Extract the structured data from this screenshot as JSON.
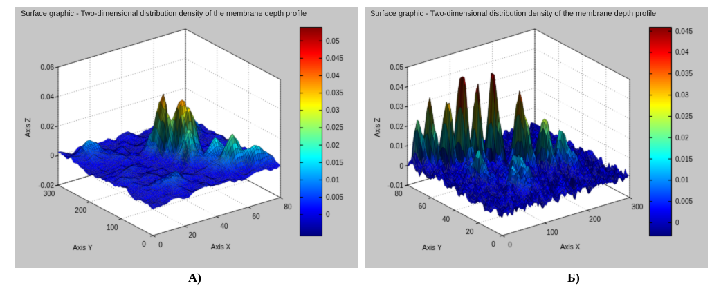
{
  "figure": {
    "panel_bg": "#c6c6c6",
    "plot_bg": "#ffffff",
    "text_color": "#000000",
    "grid_color": "rgba(0,0,0,0.55)",
    "jet_colormap": [
      "#00008f",
      "#0000ff",
      "#00ffff",
      "#ffff00",
      "#ff0000",
      "#800000"
    ]
  },
  "chart_data": [
    {
      "type": "3d-surface",
      "panel_label": "А)",
      "title": "Surface graphic - Two-dimensional distribution density of the membrane depth profile",
      "xlabel": "Axis X",
      "ylabel": "Axis Y",
      "zlabel": "Axis Z",
      "xlim": [
        0,
        80
      ],
      "ylim": [
        0,
        300
      ],
      "zlim": [
        -0.02,
        0.06
      ],
      "x_ticks": {
        "values": [
          0,
          20,
          40,
          60,
          80
        ],
        "labels": [
          "0",
          "20",
          "40",
          "60",
          "80"
        ]
      },
      "y_ticks": {
        "values": [
          0,
          100,
          200,
          300
        ],
        "labels": [
          "0",
          "100",
          "200",
          "300"
        ]
      },
      "z_ticks": {
        "values": [
          -0.02,
          0,
          0.02,
          0.04,
          0.06
        ],
        "labels": [
          "-0.02",
          "0",
          "0.02",
          "0.04",
          "0.06"
        ]
      },
      "colorbar": {
        "tick_values": [
          0,
          0.005,
          0.01,
          0.015,
          0.02,
          0.025,
          0.03,
          0.035,
          0.04,
          0.045,
          0.05
        ],
        "tick_labels": [
          "0",
          "0.005",
          "0.01",
          "0.015",
          "0.02",
          "0.025",
          "0.03",
          "0.035",
          "0.04",
          "0.045",
          "0.05"
        ],
        "clim": [
          -0.006,
          0.054
        ]
      },
      "surface_model": {
        "seed": 3,
        "base": 0.0005,
        "noise_amp": 0.0045,
        "noise_scale_x": 7,
        "noise_scale_y": 22,
        "crag_scale_x": 4,
        "crag_scale_y": 12,
        "z_cap": 0.0535,
        "grid": [
          64,
          96
        ],
        "peaks": [
          {
            "x": 48,
            "y": 152,
            "sx": 2.5,
            "sy": 9,
            "h": 0.05
          },
          {
            "x": 52,
            "y": 138,
            "sx": 2.5,
            "sy": 8,
            "h": 0.036
          },
          {
            "x": 43,
            "y": 161,
            "sx": 2.5,
            "sy": 9,
            "h": 0.03
          },
          {
            "x": 42,
            "y": 183,
            "sx": 2.5,
            "sy": 9,
            "h": 0.031
          },
          {
            "x": 55,
            "y": 166,
            "sx": 3,
            "sy": 10,
            "h": 0.022
          },
          {
            "x": 46,
            "y": 118,
            "sx": 3,
            "sy": 10,
            "h": 0.017
          },
          {
            "x": 40,
            "y": 200,
            "sx": 3,
            "sy": 13,
            "h": 0.013
          },
          {
            "x": 61,
            "y": 53,
            "sx": 6,
            "sy": 14,
            "h": 0.017
          },
          {
            "x": 58,
            "y": 95,
            "sx": 5,
            "sy": 12,
            "h": 0.012
          },
          {
            "x": 72,
            "y": 30,
            "sx": 6,
            "sy": 10,
            "h": 0.011
          },
          {
            "x": 65,
            "y": 215,
            "sx": 6,
            "sy": 16,
            "h": 0.012
          },
          {
            "x": 12,
            "y": 255,
            "sx": 5,
            "sy": 18,
            "h": 0.007
          },
          {
            "x": 20,
            "y": 60,
            "sx": 6,
            "sy": 16,
            "h": 0.007
          }
        ]
      }
    },
    {
      "type": "3d-surface",
      "panel_label": "Б)",
      "title": "Surface graphic - Two-dimensional distribution density of the membrane depth profile",
      "xlabel": "Axis X",
      "ylabel": "Axis Y",
      "zlabel": "Axis Z",
      "xlim": [
        0,
        300
      ],
      "ylim": [
        0,
        80
      ],
      "zlim": [
        -0.01,
        0.05
      ],
      "x_ticks": {
        "values": [
          0,
          100,
          200,
          300
        ],
        "labels": [
          "0",
          "100",
          "200",
          "300"
        ]
      },
      "y_ticks": {
        "values": [
          0,
          20,
          40,
          60,
          80
        ],
        "labels": [
          "0",
          "20",
          "40",
          "60",
          "80"
        ]
      },
      "z_ticks": {
        "values": [
          -0.01,
          0,
          0.01,
          0.02,
          0.03,
          0.04,
          0.05
        ],
        "labels": [
          "-0.01",
          "0",
          "0.01",
          "0.02",
          "0.03",
          "0.04",
          "0.05"
        ]
      },
      "colorbar": {
        "tick_values": [
          0,
          0.005,
          0.01,
          0.015,
          0.02,
          0.025,
          0.03,
          0.035,
          0.04,
          0.045
        ],
        "tick_labels": [
          "0",
          "0.005",
          "0.01",
          "0.015",
          "0.02",
          "0.025",
          "0.03",
          "0.035",
          "0.04",
          "0.045"
        ],
        "clim": [
          -0.003,
          0.046
        ]
      },
      "surface_model": {
        "seed": 11,
        "base": 0.0008,
        "noise_amp": 0.0055,
        "noise_scale_x": 6,
        "noise_scale_y": 3,
        "crag_scale_x": 7,
        "crag_scale_y": 4,
        "z_cap": 0.0455,
        "grid": [
          96,
          64
        ],
        "peaks": [
          {
            "x": 28,
            "y": 70,
            "sx": 5,
            "sy": 4,
            "h": 0.034
          },
          {
            "x": 15,
            "y": 76,
            "sx": 4,
            "sy": 3,
            "h": 0.022
          },
          {
            "x": 55,
            "y": 66,
            "sx": 5,
            "sy": 4,
            "h": 0.03
          },
          {
            "x": 80,
            "y": 62,
            "sx": 5,
            "sy": 4,
            "h": 0.042
          },
          {
            "x": 100,
            "y": 57,
            "sx": 5,
            "sy": 4,
            "h": 0.034
          },
          {
            "x": 135,
            "y": 55,
            "sx": 5,
            "sy": 4,
            "h": 0.046
          },
          {
            "x": 165,
            "y": 42,
            "sx": 6,
            "sy": 5,
            "h": 0.035
          },
          {
            "x": 197,
            "y": 34,
            "sx": 6,
            "sy": 5,
            "h": 0.027
          },
          {
            "x": 228,
            "y": 30,
            "sx": 8,
            "sy": 6,
            "h": 0.017
          },
          {
            "x": 60,
            "y": 40,
            "sx": 8,
            "sy": 6,
            "h": 0.014
          },
          {
            "x": 120,
            "y": 28,
            "sx": 10,
            "sy": 7,
            "h": 0.011
          },
          {
            "x": 90,
            "y": 20,
            "sx": 10,
            "sy": 6,
            "h": 0.009
          }
        ]
      }
    }
  ]
}
